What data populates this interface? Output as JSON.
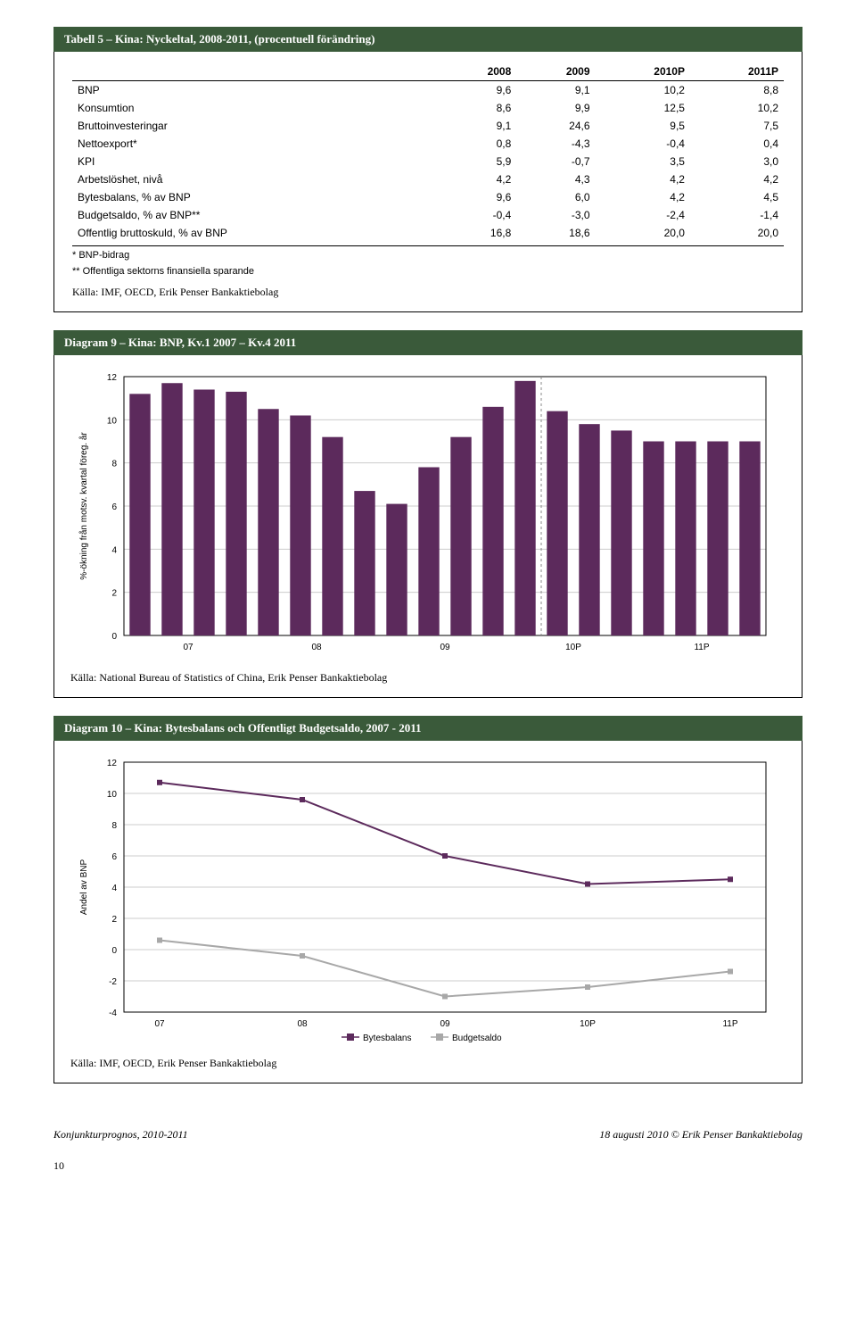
{
  "table5": {
    "title": "Tabell 5 – Kina: Nyckeltal, 2008-2011, (procentuell förändring)",
    "headers": [
      "",
      "2008",
      "2009",
      "2010P",
      "2011P"
    ],
    "rows": [
      [
        "BNP",
        "9,6",
        "9,1",
        "10,2",
        "8,8"
      ],
      [
        "Konsumtion",
        "8,6",
        "9,9",
        "12,5",
        "10,2"
      ],
      [
        "Bruttoinvesteringar",
        "9,1",
        "24,6",
        "9,5",
        "7,5"
      ],
      [
        "Nettoexport*",
        "0,8",
        "-4,3",
        "-0,4",
        "0,4"
      ],
      [
        "KPI",
        "5,9",
        "-0,7",
        "3,5",
        "3,0"
      ],
      [
        "Arbetslöshet, nivå",
        "4,2",
        "4,3",
        "4,2",
        "4,2"
      ],
      [
        "Bytesbalans, % av BNP",
        "9,6",
        "6,0",
        "4,2",
        "4,5"
      ],
      [
        "Budgetsaldo, % av BNP**",
        "-0,4",
        "-3,0",
        "-2,4",
        "-1,4"
      ],
      [
        "Offentlig bruttoskuld, % av BNP",
        "16,8",
        "18,6",
        "20,0",
        "20,0"
      ]
    ],
    "note1": "* BNP-bidrag",
    "note2": "** Offentliga sektorns finansiella sparande",
    "source": "Källa: IMF, OECD, Erik Penser Bankaktiebolag"
  },
  "diagram9": {
    "title": "Diagram 9 – Kina: BNP, Kv.1 2007 – Kv.4 2011",
    "type": "bar",
    "ylabel": "%-ökning från motsv. kvartal föreg. år",
    "ylim": [
      0,
      12
    ],
    "ytick_step": 2,
    "yticks": [
      0,
      2,
      4,
      6,
      8,
      10,
      12
    ],
    "xticks": [
      "07",
      "08",
      "09",
      "10P",
      "11P"
    ],
    "values": [
      11.2,
      11.7,
      11.4,
      11.3,
      10.5,
      10.2,
      9.2,
      6.7,
      6.1,
      7.8,
      9.2,
      10.6,
      11.8,
      10.4,
      9.8,
      9.5,
      9.0,
      9.0,
      9.0,
      9.0
    ],
    "forecast_divider_index": 13,
    "bar_color": "#5c2a5c",
    "grid_color": "#cccccc",
    "axis_color": "#000000",
    "axis_font_size": 10,
    "label_font_size": 10,
    "source": "Källa: National Bureau of Statistics of China, Erik Penser Bankaktiebolag"
  },
  "diagram10": {
    "title": "Diagram 10 – Kina: Bytesbalans och Offentligt Budgetsaldo, 2007 - 2011",
    "type": "line",
    "ylabel": "Andel av BNP",
    "ylim": [
      -4,
      12
    ],
    "ytick_step": 2,
    "yticks": [
      -4,
      -2,
      0,
      2,
      4,
      6,
      8,
      10,
      12
    ],
    "xticks": [
      "07",
      "08",
      "09",
      "10P",
      "11P"
    ],
    "series": [
      {
        "name": "Bytesbalans",
        "color": "#5c2a5c",
        "values": [
          10.7,
          9.6,
          6.0,
          4.2,
          4.5
        ],
        "marker": "square"
      },
      {
        "name": "Budgetsaldo",
        "color": "#a8a8a8",
        "values": [
          0.6,
          -0.4,
          -3.0,
          -2.4,
          -1.4
        ],
        "marker": "square"
      }
    ],
    "grid_color": "#cccccc",
    "axis_color": "#000000",
    "axis_font_size": 10,
    "label_font_size": 10,
    "legend_labels": [
      "Bytesbalans",
      "Budgetsaldo"
    ],
    "source": "Källa: IMF, OECD, Erik Penser Bankaktiebolag"
  },
  "footer": {
    "left": "Konjunkturprognos, 2010-2011",
    "right": "18 augusti 2010 © Erik Penser Bankaktiebolag",
    "pagenum": "10"
  }
}
